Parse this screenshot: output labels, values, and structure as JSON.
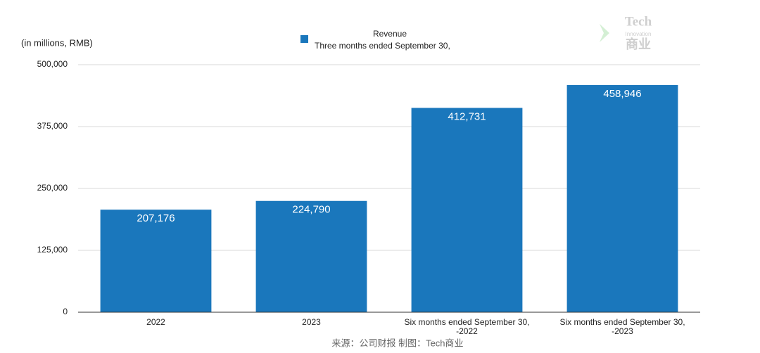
{
  "chart_data": {
    "type": "bar",
    "y_axis_label": "(in millions, RMB)",
    "categories": [
      "2022",
      "2023",
      "Six months ended September 30,\n-2022",
      "Six months ended September 30,\n-2023"
    ],
    "series": [
      {
        "name": "Revenue",
        "legend_subtitle": "Three months ended September 30,",
        "color": "#1a77bc",
        "values": [
          207176,
          224790,
          412731,
          458946
        ],
        "value_labels": [
          "207,176",
          "224,790",
          "412,731",
          "458,946"
        ]
      }
    ],
    "ylim": [
      0,
      500000
    ],
    "yticks": [
      0,
      {
        "value": 125000,
        "label": "125,000"
      },
      {
        "value": 250000,
        "label": "250,000"
      },
      {
        "value": 375000,
        "label": "375,000"
      },
      {
        "value": 500000,
        "label": "500,000"
      }
    ],
    "grid": true,
    "source": "来源：公司财报 制图：Tech商业",
    "watermark": {
      "line1": "Tech",
      "line2": "Innovation",
      "line3": "商业"
    }
  }
}
